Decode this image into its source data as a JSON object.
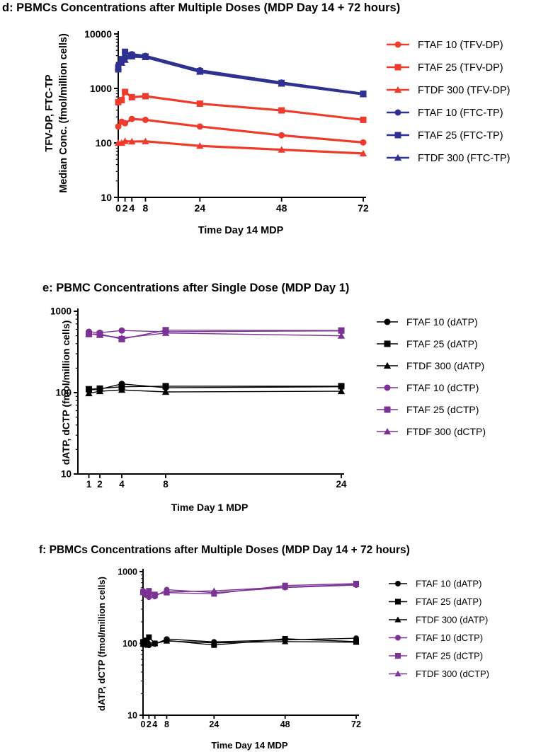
{
  "chart_data": [
    {
      "id": "d",
      "type": "line",
      "yscale": "log",
      "title": "d:  PBMCs Concentrations after Multiple Doses (MDP Day 14 + 72 hours)",
      "xlabel": "Time Day 14 MDP",
      "ylabel_lines": [
        "TFV-DP, FTC-TP",
        "Median Conc. (fmol/million cells)"
      ],
      "xlim": [
        0,
        72
      ],
      "ylim": [
        10,
        10000
      ],
      "xticks": [
        0,
        2,
        4,
        8,
        24,
        48,
        72
      ],
      "yticks": [
        10,
        100,
        1000,
        10000
      ],
      "series": [
        {
          "name": "FTAF 10 (TFV-DP)",
          "color": "#ef3b2c",
          "marker": "circle",
          "x": [
            0,
            1,
            2,
            4,
            8,
            24,
            48,
            72
          ],
          "y": [
            200,
            245,
            230,
            275,
            265,
            200,
            138,
            102
          ]
        },
        {
          "name": "FTAF 25 (TFV-DP)",
          "color": "#ef3b2c",
          "marker": "square",
          "x": [
            0,
            1,
            2,
            4,
            8,
            24,
            48,
            72
          ],
          "y": [
            560,
            610,
            860,
            690,
            720,
            525,
            395,
            265
          ]
        },
        {
          "name": "FTDF 300 (TFV-DP)",
          "color": "#ef3b2c",
          "marker": "triangle",
          "x": [
            0,
            1,
            2,
            4,
            8,
            24,
            48,
            72
          ],
          "y": [
            100,
            100,
            108,
            106,
            107,
            88,
            75,
            64
          ]
        },
        {
          "name": "FTAF 10 (FTC-TP)",
          "color": "#2e3192",
          "marker": "circle",
          "x": [
            0,
            1,
            2,
            4,
            8,
            24,
            48,
            72
          ],
          "y": [
            2650,
            3050,
            3650,
            4250,
            3950,
            2150,
            1280,
            790
          ]
        },
        {
          "name": "FTAF 25 (FTC-TP)",
          "color": "#2e3192",
          "marker": "square",
          "x": [
            0,
            1,
            2,
            4,
            8,
            24,
            48,
            72
          ],
          "y": [
            2250,
            3450,
            4700,
            4100,
            3850,
            2080,
            1260,
            800
          ]
        },
        {
          "name": "FTDF 300 (FTC-TP)",
          "color": "#2e3192",
          "marker": "triangle",
          "x": [
            0,
            1,
            2,
            4,
            8,
            24,
            48,
            72
          ],
          "y": [
            2450,
            2950,
            3350,
            3850,
            3750,
            2020,
            1220,
            780
          ]
        }
      ]
    },
    {
      "id": "e",
      "type": "line",
      "yscale": "log",
      "title": "e:  PBMC Concentrations after Single Dose (MDP Day 1)",
      "xlabel": "Time Day 1 MDP",
      "ylabel_lines": [
        "dATP, dCTP (fmol/million cells)"
      ],
      "xlim": [
        0,
        24
      ],
      "ylim": [
        10,
        1000
      ],
      "xticks": [
        1,
        2,
        4,
        8,
        24
      ],
      "yticks": [
        10,
        100,
        1000
      ],
      "series": [
        {
          "name": "FTAF 10 (dATP)",
          "color": "#000000",
          "marker": "circle",
          "x": [
            1,
            2,
            4,
            8,
            24
          ],
          "y": [
            108,
            110,
            128,
            115,
            118
          ]
        },
        {
          "name": "FTAF 25 (dATP)",
          "color": "#000000",
          "marker": "square",
          "x": [
            1,
            2,
            4,
            8,
            24
          ],
          "y": [
            110,
            112,
            118,
            120,
            120
          ]
        },
        {
          "name": "FTDF 300 (dATP)",
          "color": "#000000",
          "marker": "triangle",
          "x": [
            1,
            2,
            4,
            8,
            24
          ],
          "y": [
            98,
            104,
            108,
            102,
            104
          ]
        },
        {
          "name": "FTAF 10 (dCTP)",
          "color": "#7b3294",
          "marker": "circle",
          "x": [
            1,
            2,
            4,
            8,
            24
          ],
          "y": [
            560,
            545,
            580,
            560,
            575
          ]
        },
        {
          "name": "FTAF 25 (dCTP)",
          "color": "#7b3294",
          "marker": "square",
          "x": [
            1,
            2,
            4,
            8,
            24
          ],
          "y": [
            525,
            525,
            455,
            585,
            580
          ]
        },
        {
          "name": "FTDF 300 (dCTP)",
          "color": "#7b3294",
          "marker": "triangle",
          "x": [
            1,
            2,
            4,
            8,
            24
          ],
          "y": [
            530,
            510,
            470,
            540,
            500
          ]
        }
      ]
    },
    {
      "id": "f",
      "type": "line",
      "yscale": "log",
      "title": "f:  PBMCs Concentrations after Multiple Doses (MDP Day 14 + 72 hours)",
      "xlabel": "Time Day 14 MDP",
      "ylabel_lines": [
        "dATP, dCTP (fmol/million cells)"
      ],
      "xlim": [
        0,
        72
      ],
      "ylim": [
        10,
        1000
      ],
      "xticks": [
        0,
        2,
        4,
        8,
        24,
        48,
        72
      ],
      "yticks": [
        10,
        100,
        1000
      ],
      "series": [
        {
          "name": "FTAF 10 (dATP)",
          "color": "#000000",
          "marker": "circle",
          "x": [
            0,
            1,
            2,
            4,
            8,
            24,
            48,
            72
          ],
          "y": [
            100,
            95,
            94,
            98,
            115,
            105,
            112,
            118
          ]
        },
        {
          "name": "FTAF 25 (dATP)",
          "color": "#000000",
          "marker": "square",
          "x": [
            0,
            1,
            2,
            4,
            8,
            24,
            48,
            72
          ],
          "y": [
            105,
            110,
            122,
            100,
            110,
            95,
            116,
            106
          ]
        },
        {
          "name": "FTDF 300 (dATP)",
          "color": "#000000",
          "marker": "triangle",
          "x": [
            0,
            1,
            2,
            4,
            8,
            24,
            48,
            72
          ],
          "y": [
            98,
            100,
            103,
            100,
            108,
            102,
            106,
            104
          ]
        },
        {
          "name": "FTAF 10 (dCTP)",
          "color": "#7b3294",
          "marker": "circle",
          "x": [
            0,
            1,
            2,
            4,
            8,
            24,
            48,
            72
          ],
          "y": [
            540,
            470,
            440,
            450,
            560,
            510,
            600,
            650
          ]
        },
        {
          "name": "FTAF 25 (dCTP)",
          "color": "#7b3294",
          "marker": "square",
          "x": [
            0,
            1,
            2,
            4,
            8,
            24,
            48,
            72
          ],
          "y": [
            520,
            500,
            540,
            480,
            510,
            490,
            640,
            680
          ]
        },
        {
          "name": "FTDF 300 (dCTP)",
          "color": "#7b3294",
          "marker": "triangle",
          "x": [
            0,
            1,
            2,
            4,
            8,
            24,
            48,
            72
          ],
          "y": [
            510,
            480,
            500,
            470,
            520,
            540,
            610,
            660
          ]
        }
      ]
    }
  ]
}
